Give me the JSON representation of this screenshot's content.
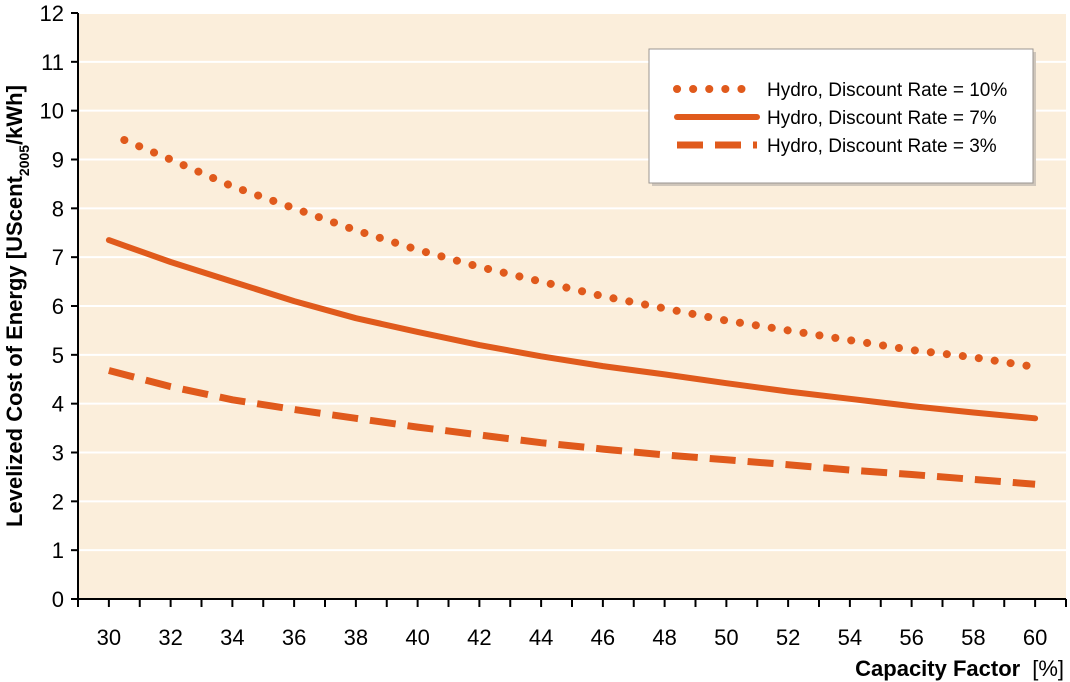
{
  "chart_data": {
    "type": "line",
    "xlabel": "Capacity Factor",
    "xlabel_unit": "[%]",
    "ylabel_prefix": "Levelized Cost of Energy [UScent",
    "ylabel_subscript": "2005",
    "ylabel_suffix": "/kWh]",
    "xlim": [
      29,
      61
    ],
    "ylim": [
      0,
      12
    ],
    "x_ticks": [
      30,
      32,
      34,
      36,
      38,
      40,
      42,
      44,
      46,
      48,
      50,
      52,
      54,
      56,
      58,
      60
    ],
    "y_ticks": [
      0,
      1,
      2,
      3,
      4,
      5,
      6,
      7,
      8,
      9,
      10,
      11,
      12
    ],
    "grid": "horizontal",
    "legend_position": "top-right",
    "colors": {
      "series": "#e05a1c",
      "plot_background": "#fbeedb",
      "grid": "#ffffff"
    },
    "series": [
      {
        "name": "Hydro, Discount Rate = 10%",
        "style": "dotted",
        "x": [
          30.5,
          32,
          34,
          36,
          38,
          40,
          42,
          44,
          46,
          48,
          50,
          52,
          54,
          56,
          58,
          60
        ],
        "y": [
          9.4,
          9.0,
          8.45,
          8.0,
          7.55,
          7.15,
          6.8,
          6.5,
          6.2,
          5.95,
          5.7,
          5.5,
          5.3,
          5.1,
          4.95,
          4.75
        ]
      },
      {
        "name": "Hydro, Discount Rate = 7%",
        "style": "solid",
        "x": [
          30,
          32,
          34,
          36,
          38,
          40,
          42,
          44,
          46,
          48,
          50,
          52,
          54,
          56,
          58,
          60
        ],
        "y": [
          7.35,
          6.9,
          6.5,
          6.1,
          5.75,
          5.47,
          5.2,
          4.97,
          4.77,
          4.6,
          4.42,
          4.25,
          4.1,
          3.95,
          3.82,
          3.7
        ]
      },
      {
        "name": "Hydro, Discount Rate = 3%",
        "style": "dashed",
        "x": [
          30,
          32,
          34,
          36,
          38,
          40,
          42,
          44,
          46,
          48,
          50,
          52,
          54,
          56,
          58,
          60
        ],
        "y": [
          4.68,
          4.35,
          4.08,
          3.88,
          3.7,
          3.52,
          3.36,
          3.2,
          3.07,
          2.95,
          2.85,
          2.75,
          2.64,
          2.55,
          2.45,
          2.35
        ]
      }
    ]
  }
}
